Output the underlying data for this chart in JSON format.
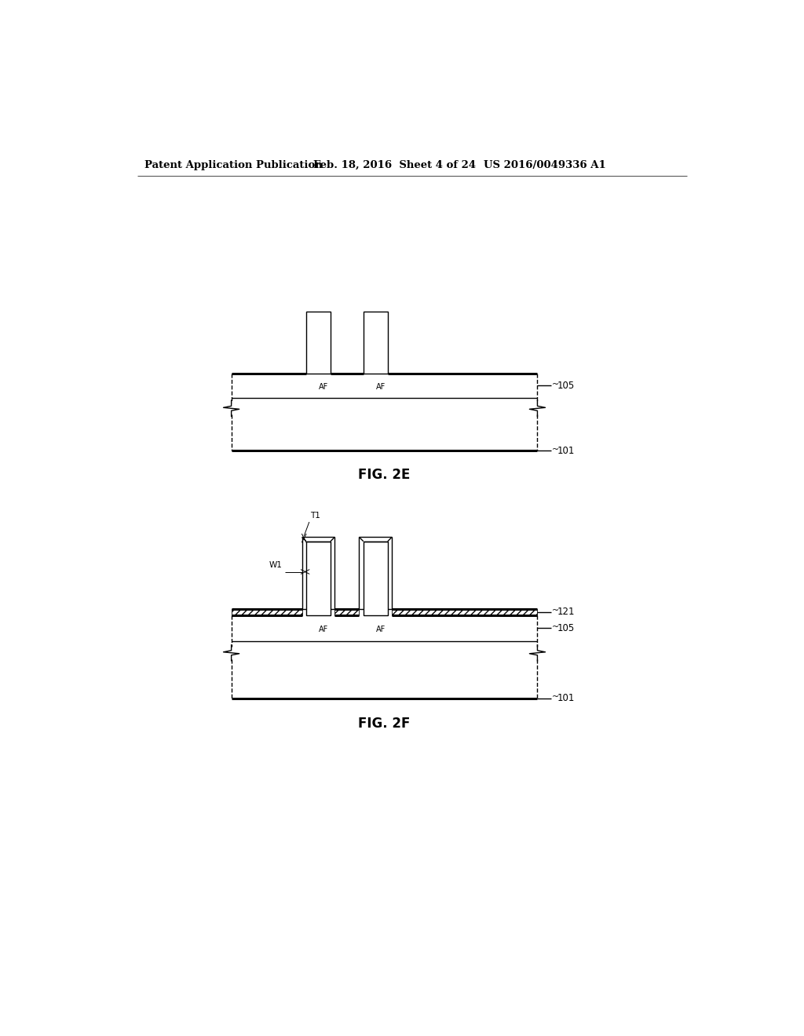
{
  "bg_color": "#ffffff",
  "header_left": "Patent Application Publication",
  "header_mid": "Feb. 18, 2016  Sheet 4 of 24",
  "header_right": "US 2016/0049336 A1",
  "fig2e_label": "FIG. 2E",
  "fig2f_label": "FIG. 2F",
  "line_color": "#000000",
  "lw": 1.0,
  "lw_thick": 2.2
}
